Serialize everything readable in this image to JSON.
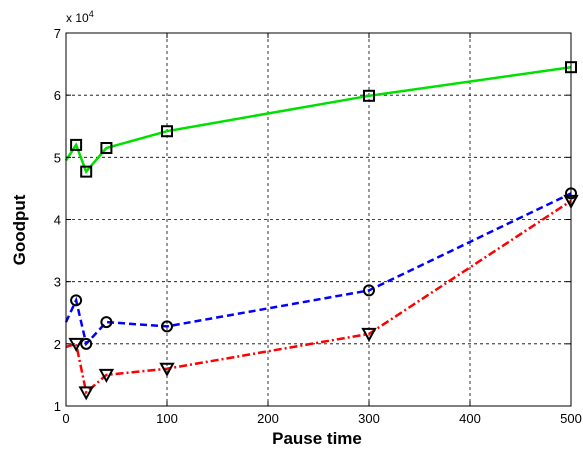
{
  "chart_data": {
    "type": "line",
    "title": "",
    "xlabel": "Pause time",
    "ylabel": "Goodput",
    "y_multiplier_label": "x 10",
    "y_multiplier_exponent": "4",
    "xlim": [
      0,
      500
    ],
    "ylim": [
      1,
      7
    ],
    "y_scale": 10000,
    "xticks": [
      0,
      100,
      200,
      300,
      400,
      500
    ],
    "yticks": [
      1,
      2,
      3,
      4,
      5,
      6,
      7
    ],
    "grid": true,
    "legend": "none",
    "series": [
      {
        "color": "#00e000",
        "dash": "solid",
        "marker": "square",
        "points": [
          [
            0,
            4.95
          ],
          [
            10,
            5.2
          ],
          [
            20,
            4.77
          ],
          [
            40,
            5.15
          ],
          [
            100,
            5.42
          ],
          [
            300,
            5.99
          ],
          [
            500,
            6.45
          ]
        ]
      },
      {
        "color": "#0000ff",
        "dash": "dashed",
        "marker": "circle",
        "points": [
          [
            0,
            2.35
          ],
          [
            10,
            2.7
          ],
          [
            20,
            2.0
          ],
          [
            40,
            2.35
          ],
          [
            100,
            2.28
          ],
          [
            300,
            2.86
          ],
          [
            500,
            4.42
          ]
        ]
      },
      {
        "color": "#ff0000",
        "dash": "dashdot",
        "marker": "triangle-down",
        "points": [
          [
            0,
            1.95
          ],
          [
            10,
            2.0
          ],
          [
            20,
            1.22
          ],
          [
            40,
            1.5
          ],
          [
            100,
            1.6
          ],
          [
            300,
            2.16
          ],
          [
            500,
            4.3
          ]
        ]
      }
    ]
  }
}
